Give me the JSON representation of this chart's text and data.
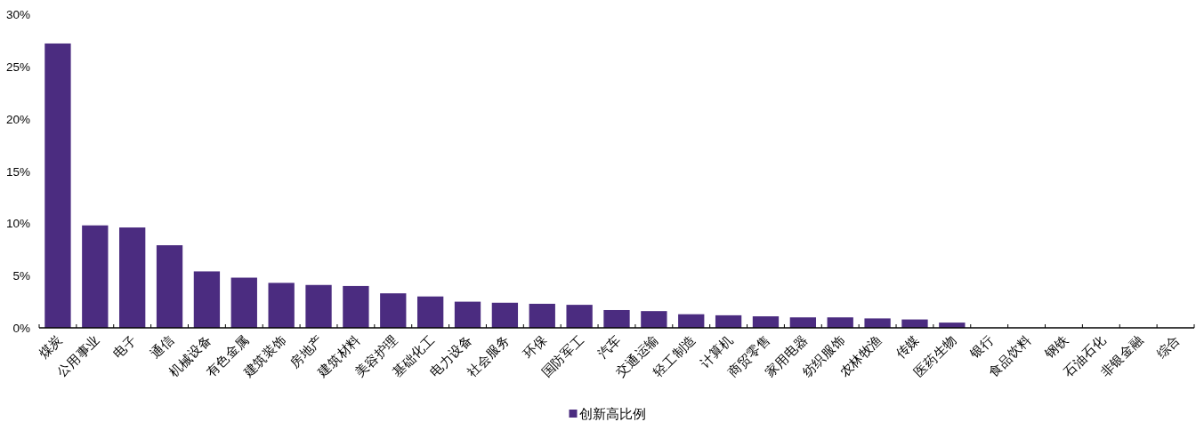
{
  "chart_data": {
    "type": "bar",
    "categories": [
      "煤炭",
      "公用事业",
      "电子",
      "通信",
      "机械设备",
      "有色金属",
      "建筑装饰",
      "房地产",
      "建筑材料",
      "美容护理",
      "基础化工",
      "电力设备",
      "社会服务",
      "环保",
      "国防军工",
      "汽车",
      "交通运输",
      "轻工制造",
      "计算机",
      "商贸零售",
      "家用电器",
      "纺织服饰",
      "农林牧渔",
      "传媒",
      "医药生物",
      "银行",
      "食品饮料",
      "钢铁",
      "石油石化",
      "非银金融",
      "综合"
    ],
    "series": [
      {
        "name": "创新高比例",
        "color": "#4b2c80",
        "values": [
          27.2,
          9.8,
          9.6,
          7.9,
          5.4,
          4.8,
          4.3,
          4.1,
          4.0,
          3.3,
          3.0,
          2.5,
          2.4,
          2.3,
          2.2,
          1.7,
          1.6,
          1.3,
          1.2,
          1.1,
          1.0,
          1.0,
          0.9,
          0.8,
          0.5,
          0,
          0,
          0,
          0,
          0,
          0
        ]
      }
    ],
    "ylim": [
      0,
      30
    ],
    "yticks": [
      {
        "value": 0,
        "label": "0%"
      },
      {
        "value": 5,
        "label": "5%"
      },
      {
        "value": 10,
        "label": "10%"
      },
      {
        "value": 15,
        "label": "15%"
      },
      {
        "value": 20,
        "label": "20%"
      },
      {
        "value": 25,
        "label": "25%"
      },
      {
        "value": 30,
        "label": "30%"
      }
    ],
    "legend": "bottom"
  }
}
